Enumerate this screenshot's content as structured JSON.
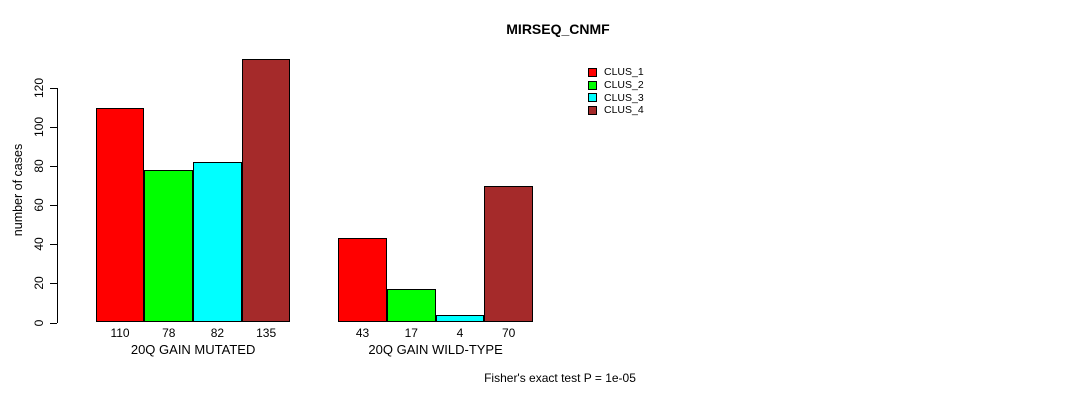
{
  "title": "MIRSEQ_CNMF",
  "chart_data": {
    "type": "bar",
    "title": "MIRSEQ_CNMF",
    "ylabel": "number of cases",
    "xlabel": "",
    "ylim": [
      0,
      135
    ],
    "yticks": [
      0,
      20,
      40,
      60,
      80,
      100,
      120
    ],
    "grid": false,
    "legend_position": "top-right",
    "categories": [
      "20Q GAIN MUTATED",
      "20Q GAIN WILD-TYPE"
    ],
    "series": [
      {
        "name": "CLUS_1",
        "color": "#FF0000",
        "values": [
          110,
          43
        ]
      },
      {
        "name": "CLUS_2",
        "color": "#00FF00",
        "values": [
          78,
          17
        ]
      },
      {
        "name": "CLUS_3",
        "color": "#00FFFF",
        "values": [
          82,
          4
        ]
      },
      {
        "name": "CLUS_4",
        "color": "#A52A2A",
        "values": [
          135,
          70
        ]
      }
    ],
    "groups": [
      {
        "label": "20Q GAIN MUTATED",
        "values": [
          110,
          78,
          82,
          135
        ]
      },
      {
        "label": "20Q GAIN WILD-TYPE",
        "values": [
          43,
          17,
          4,
          70
        ]
      }
    ],
    "bar_value_labels": [
      [
        "110",
        "78",
        "82",
        "135"
      ],
      [
        "43",
        "17",
        "4",
        "70"
      ]
    ],
    "annotation": "Fisher's exact test P = 1e-05"
  }
}
